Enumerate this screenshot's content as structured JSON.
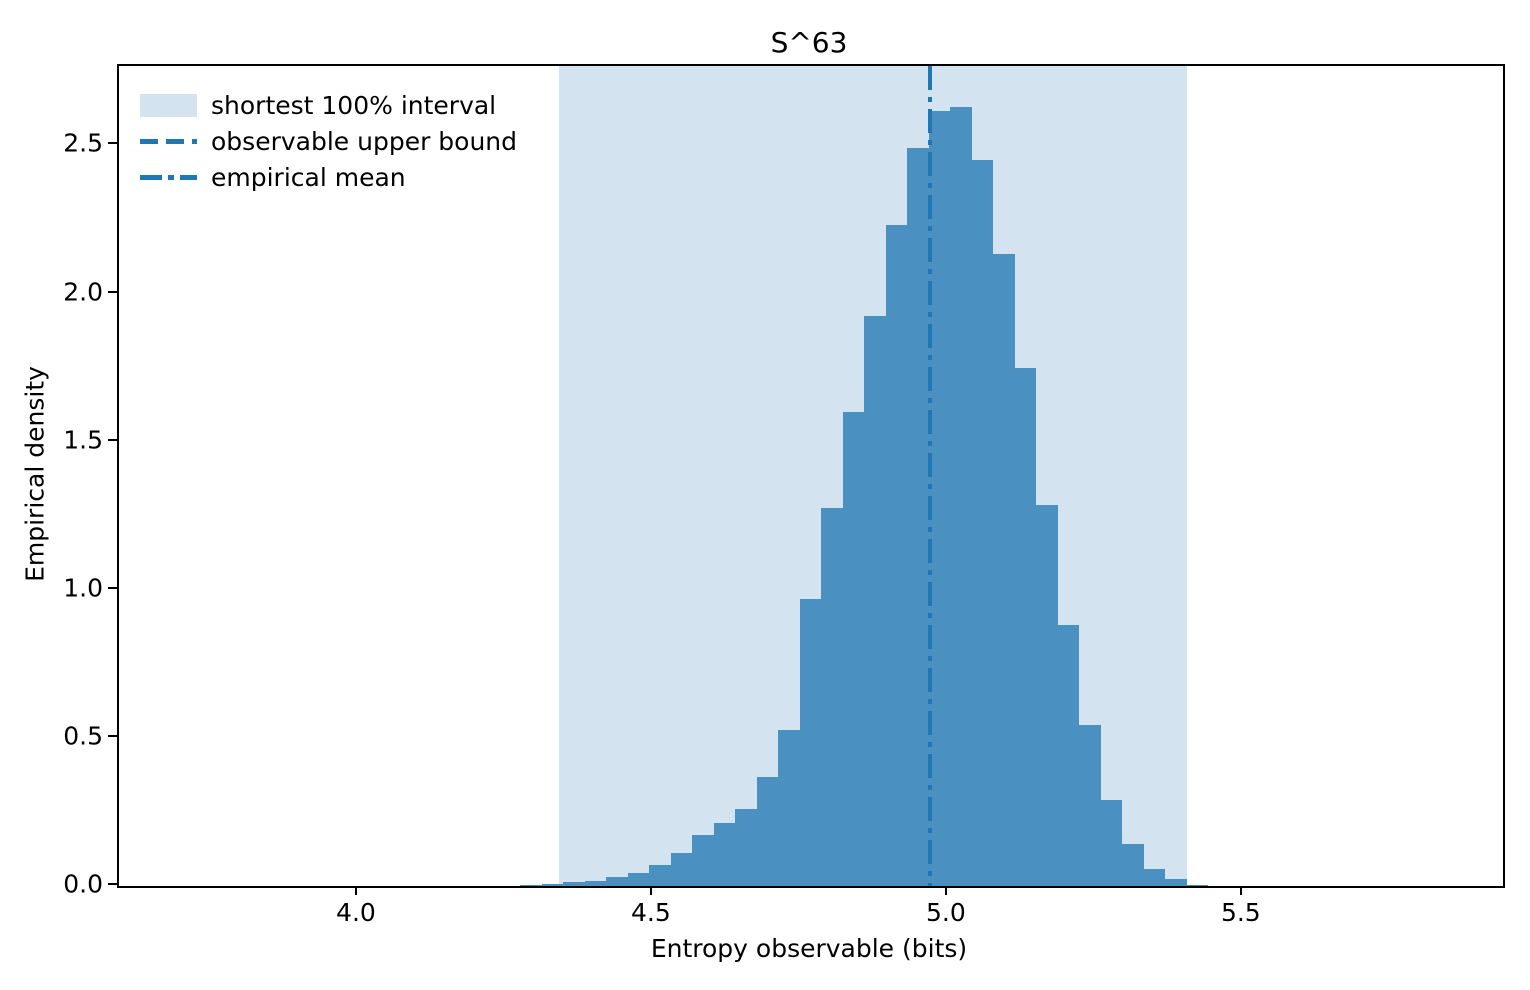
{
  "figure": {
    "title": "S^63",
    "xlabel": "Entropy observable (bits)",
    "ylabel": "Empirical density"
  },
  "legend": {
    "items": [
      {
        "label": "shortest 100% interval",
        "marker": "patch"
      },
      {
        "label": "observable upper bound",
        "marker": "dashed-line"
      },
      {
        "label": "empirical mean",
        "marker": "dashdot-line"
      }
    ]
  },
  "chart_data": {
    "type": "bar",
    "subtype": "histogram",
    "title": "S^63",
    "xlabel": "Entropy observable (bits)",
    "ylabel": "Empirical density",
    "xlim": [
      3.595,
      5.941
    ],
    "ylim": [
      0,
      2.768
    ],
    "grid": false,
    "legend_position": "upper-left",
    "x_ticks": [
      {
        "value": 4.0,
        "label": "4.0"
      },
      {
        "value": 4.5,
        "label": "4.5"
      },
      {
        "value": 5.0,
        "label": "5.0"
      },
      {
        "value": 5.5,
        "label": "5.5"
      }
    ],
    "y_ticks": [
      {
        "value": 0.0,
        "label": "0.0"
      },
      {
        "value": 0.5,
        "label": "0.5"
      },
      {
        "value": 1.0,
        "label": "1.0"
      },
      {
        "value": 1.5,
        "label": "1.5"
      },
      {
        "value": 2.0,
        "label": "2.0"
      },
      {
        "value": 2.5,
        "label": "2.5"
      }
    ],
    "bin_edges": [
      4.2754,
      4.3119,
      4.3483,
      4.3848,
      4.4212,
      4.4576,
      4.4941,
      4.5305,
      4.567,
      4.6034,
      4.6398,
      4.6763,
      4.7127,
      4.7492,
      4.7856,
      4.822,
      4.8585,
      4.8949,
      4.9314,
      4.9678,
      5.0042,
      5.0407,
      5.0771,
      5.1136,
      5.15,
      5.1864,
      5.2229,
      5.2593,
      5.2958,
      5.3322,
      5.3686,
      5.4051,
      5.4415
    ],
    "densities": [
      0.003,
      0.006,
      0.014,
      0.018,
      0.03,
      0.045,
      0.072,
      0.113,
      0.171,
      0.213,
      0.26,
      0.368,
      0.527,
      0.97,
      1.277,
      1.6,
      1.925,
      2.23,
      2.49,
      2.615,
      2.63,
      2.45,
      2.135,
      1.75,
      1.287,
      0.881,
      0.545,
      0.29,
      0.143,
      0.058,
      0.023,
      0.005
    ],
    "shaded_interval": {
      "label": "shortest 100% interval",
      "x_min": 4.341,
      "x_max": 5.406
    },
    "mean_line": {
      "label": "empirical mean",
      "x": 4.97,
      "style": "dashdot"
    },
    "upper_bound_line": {
      "label": "observable upper bound",
      "style": "dashed",
      "visible_in_plot_area": false
    },
    "colors": {
      "bar": "#4a91c2",
      "interval_fill": "#d3e4f0",
      "line": "#1f77b4",
      "axis": "#000000",
      "background": "#ffffff"
    }
  }
}
